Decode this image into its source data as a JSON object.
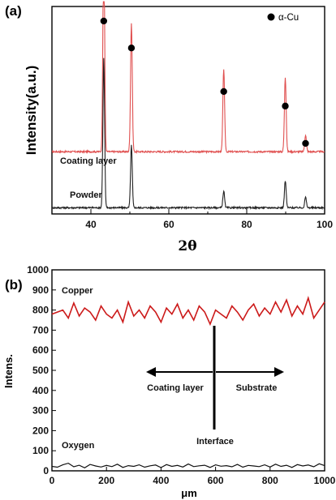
{
  "chart_data": [
    {
      "panel_label": "(a)",
      "type": "line",
      "xlabel": "2θ",
      "ylabel": "Intensity(a.u.)",
      "xlim": [
        30,
        100
      ],
      "xticks": [
        "40",
        "60",
        "80",
        "100"
      ],
      "legend": {
        "marker": "filled-circle",
        "label": "α-Cu",
        "placement": "top-right"
      },
      "peaks_x": [
        43.3,
        50.4,
        74.1,
        89.9,
        95.1
      ],
      "series": [
        {
          "name": "Coating layer",
          "color": "#e05050",
          "baseline": 0.3,
          "peaks": [
            {
              "x": 43.3,
              "height": 1.05
            },
            {
              "x": 50.4,
              "height": 0.62
            },
            {
              "x": 74.1,
              "height": 0.4
            },
            {
              "x": 89.9,
              "height": 0.36
            },
            {
              "x": 95.1,
              "height": 0.08
            }
          ]
        },
        {
          "name": "Powder",
          "color": "#222222",
          "baseline": 0.03,
          "peaks": [
            {
              "x": 43.3,
              "height": 0.72
            },
            {
              "x": 50.4,
              "height": 0.3
            },
            {
              "x": 74.1,
              "height": 0.08
            },
            {
              "x": 89.9,
              "height": 0.13
            },
            {
              "x": 95.1,
              "height": 0.05
            }
          ]
        }
      ],
      "annotation_markers": [
        {
          "x": 43.3,
          "y": 0.93
        },
        {
          "x": 50.4,
          "y": 0.8
        },
        {
          "x": 74.1,
          "y": 0.59
        },
        {
          "x": 89.9,
          "y": 0.52
        },
        {
          "x": 95.1,
          "y": 0.34
        }
      ]
    },
    {
      "panel_label": "(b)",
      "type": "line",
      "xlabel": "μm",
      "ylabel": "Intens.",
      "xlim": [
        0,
        1000
      ],
      "ylim": [
        0,
        1000
      ],
      "xticks": [
        0,
        200,
        400,
        600,
        800,
        1000
      ],
      "yticks": [
        0,
        100,
        200,
        300,
        400,
        500,
        600,
        700,
        800,
        900,
        1000
      ],
      "series": [
        {
          "name": "Copper",
          "color": "#cc1a1a",
          "x": [
            0,
            20,
            40,
            60,
            80,
            100,
            120,
            140,
            160,
            180,
            200,
            220,
            240,
            260,
            280,
            300,
            320,
            340,
            360,
            380,
            400,
            420,
            440,
            460,
            480,
            500,
            520,
            540,
            560,
            580,
            600,
            620,
            640,
            660,
            680,
            700,
            720,
            740,
            760,
            780,
            800,
            820,
            840,
            860,
            880,
            900,
            920,
            940,
            960,
            980,
            1000
          ],
          "values": [
            780,
            790,
            800,
            760,
            835,
            770,
            810,
            790,
            750,
            820,
            780,
            760,
            800,
            740,
            840,
            770,
            800,
            760,
            820,
            790,
            740,
            810,
            780,
            830,
            760,
            800,
            750,
            820,
            790,
            730,
            800,
            780,
            760,
            820,
            790,
            750,
            800,
            830,
            770,
            810,
            780,
            840,
            790,
            850,
            770,
            820,
            780,
            860,
            760,
            800,
            840
          ]
        },
        {
          "name": "Oxygen",
          "color": "#111111",
          "x": [
            0,
            20,
            40,
            60,
            80,
            100,
            120,
            140,
            160,
            180,
            200,
            220,
            240,
            260,
            280,
            300,
            320,
            340,
            360,
            380,
            400,
            420,
            440,
            460,
            480,
            500,
            520,
            540,
            560,
            580,
            600,
            620,
            640,
            660,
            680,
            700,
            720,
            740,
            760,
            780,
            800,
            820,
            840,
            860,
            880,
            900,
            920,
            940,
            960,
            980,
            1000
          ],
          "values": [
            22,
            18,
            30,
            38,
            20,
            28,
            15,
            32,
            24,
            19,
            27,
            21,
            33,
            17,
            26,
            22,
            30,
            18,
            25,
            29,
            16,
            31,
            22,
            27,
            19,
            34,
            21,
            25,
            28,
            17,
            30,
            23,
            26,
            20,
            32,
            18,
            27,
            24,
            21,
            30,
            19,
            33,
            22,
            28,
            17,
            31,
            24,
            29,
            20,
            35,
            26
          ]
        }
      ],
      "annotations": {
        "coating_layer": "Coating layer",
        "substrate": "Substrate",
        "interface": "Interface",
        "interface_x": 580
      }
    }
  ]
}
